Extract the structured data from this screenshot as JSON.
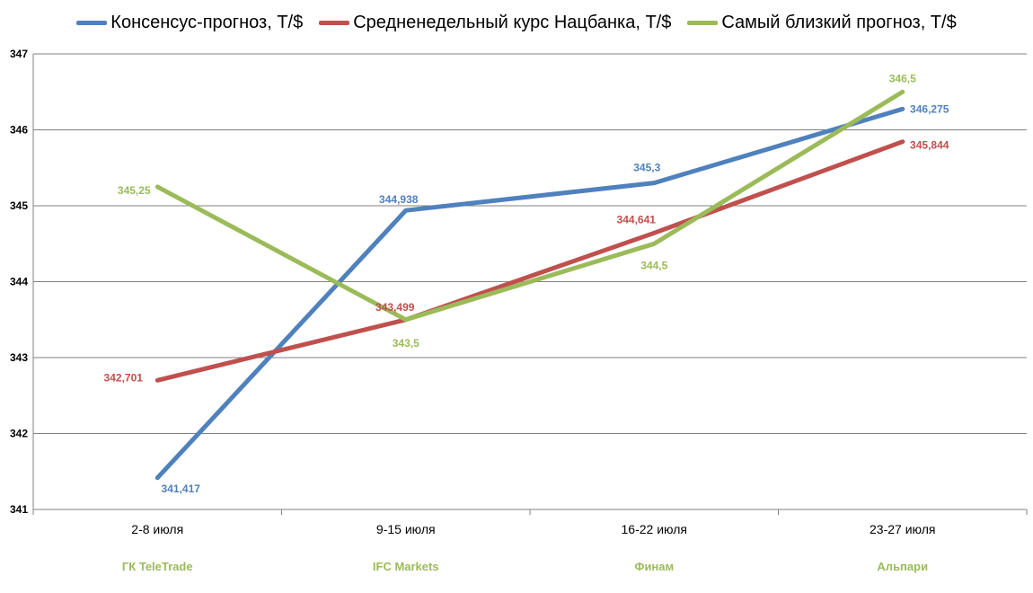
{
  "colors": {
    "blue": "#4F81BD",
    "red": "#C0504D",
    "green": "#9BBB59",
    "grid": "#808080",
    "sublabel": "#9BBB59"
  },
  "chart_data": {
    "type": "line",
    "title": "",
    "xlabel": "",
    "ylabel": "",
    "categories": [
      "2-8 июля",
      "9-15 июля",
      "16-22 июля",
      "23-27 июля"
    ],
    "sublabels": [
      "ГК TeleTrade",
      "IFC Markets",
      "Финам",
      "Альпари"
    ],
    "ylim": [
      341,
      347
    ],
    "yticks": [
      "341",
      "342",
      "343",
      "344",
      "345",
      "346",
      "347"
    ],
    "grid": true,
    "legend_position": "top",
    "series": [
      {
        "name": "Консенсус-прогноз, Т/$",
        "color": "#4F81BD",
        "values": [
          341.417,
          344.938,
          345.3,
          346.275
        ],
        "labels": [
          "341,417",
          "344,938",
          "345,3",
          "346,275"
        ]
      },
      {
        "name": "Средненедельный  курс Нацбанка, Т/$",
        "color": "#C0504D",
        "values": [
          342.701,
          343.499,
          344.641,
          345.844
        ],
        "labels": [
          "342,701",
          "343,499",
          "344,641",
          "345,844"
        ]
      },
      {
        "name": "Самый  близкий прогноз, Т/$",
        "color": "#9BBB59",
        "values": [
          345.25,
          343.5,
          344.5,
          346.5
        ],
        "labels": [
          "345,25",
          "343,5",
          "344,5",
          "346,5"
        ]
      }
    ]
  }
}
